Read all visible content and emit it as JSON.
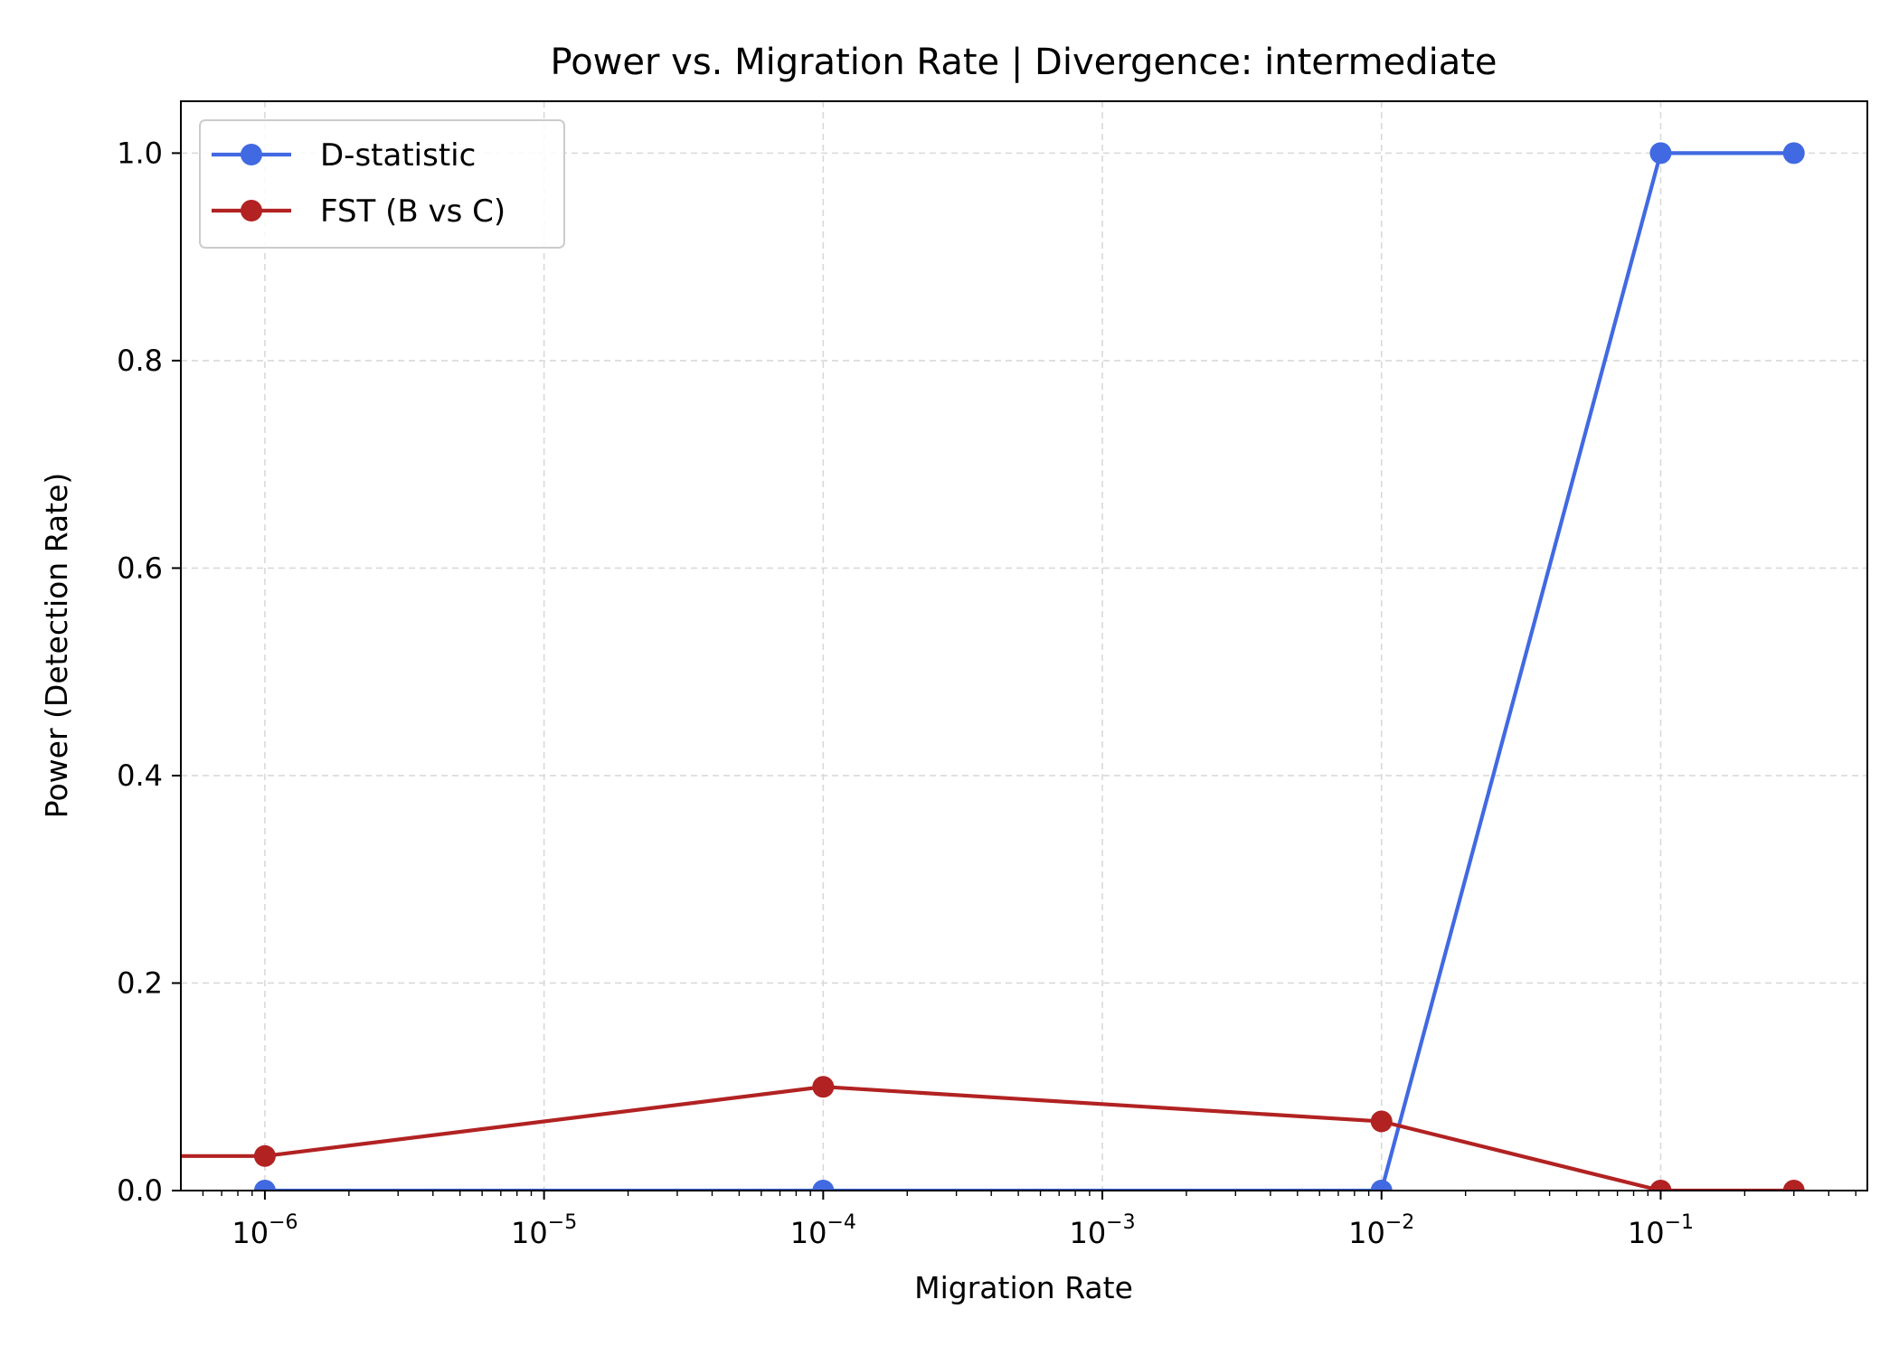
{
  "chart_data": {
    "type": "line",
    "title": "Power vs. Migration Rate | Divergence: intermediate",
    "xlabel": "Migration Rate",
    "ylabel": "Power (Detection Rate)",
    "xscale": "log",
    "xlim": [
      5e-07,
      0.55
    ],
    "ylim": [
      0,
      1.05
    ],
    "xticks": [
      {
        "value": 1e-06,
        "base": "10",
        "exp": "−6"
      },
      {
        "value": 1e-05,
        "base": "10",
        "exp": "−5"
      },
      {
        "value": 0.0001,
        "base": "10",
        "exp": "−4"
      },
      {
        "value": 0.001,
        "base": "10",
        "exp": "−3"
      },
      {
        "value": 0.01,
        "base": "10",
        "exp": "−2"
      },
      {
        "value": 0.1,
        "base": "10",
        "exp": "−1"
      }
    ],
    "yticks": [
      "0.0",
      "0.2",
      "0.4",
      "0.6",
      "0.8",
      "1.0"
    ],
    "grid": true,
    "legend_position": "top-left",
    "series": [
      {
        "name": "D-statistic",
        "color": "#4169e1",
        "x": [
          1e-06,
          0.0001,
          0.01,
          0.1,
          0.3
        ],
        "y": [
          0.0,
          0.0,
          0.0,
          1.0,
          1.0
        ]
      },
      {
        "name": "FST (B vs C)",
        "color": "#b22222",
        "x": [
          1e-08,
          1e-06,
          0.0001,
          0.01,
          0.1,
          0.3
        ],
        "y": [
          0.0333,
          0.0333,
          0.1,
          0.0667,
          0.0,
          0.0
        ]
      }
    ]
  }
}
